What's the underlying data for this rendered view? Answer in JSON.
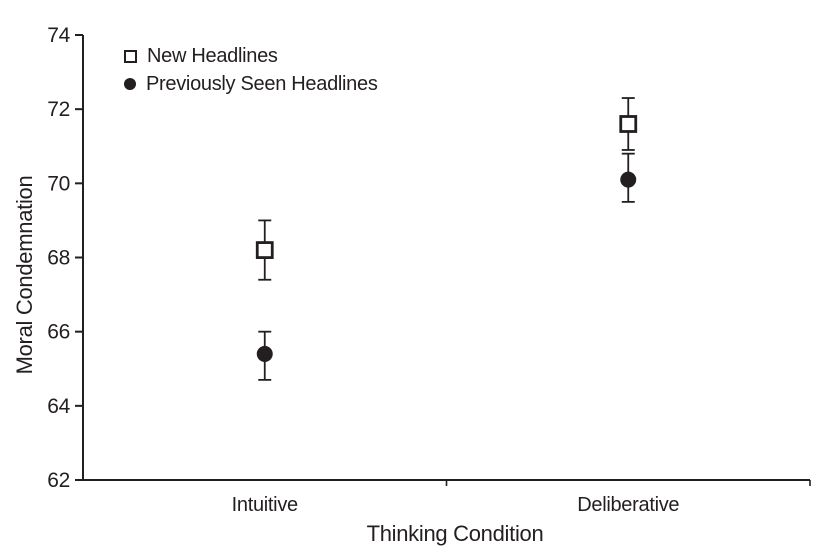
{
  "figure": {
    "background": "#ffffff",
    "ink_color": "#231f20"
  },
  "chart_data": {
    "type": "scatter",
    "title": "",
    "xlabel": "Thinking Condition",
    "ylabel": "Moral Condemnation",
    "categories": [
      "Intuitive",
      "Deliberative"
    ],
    "series": [
      {
        "name": "New Headlines",
        "marker": "open-square",
        "values": [
          68.2,
          71.6
        ],
        "error_low": [
          67.4,
          70.9
        ],
        "error_high": [
          69.0,
          72.3
        ]
      },
      {
        "name": "Previously Seen Headlines",
        "marker": "filled-circle",
        "values": [
          65.4,
          70.1
        ],
        "error_low": [
          64.7,
          69.5
        ],
        "error_high": [
          66.0,
          70.8
        ]
      }
    ],
    "ylim": [
      62,
      74
    ],
    "yticks": [
      62,
      64,
      66,
      68,
      70,
      72,
      74
    ],
    "legend_position": "top-left",
    "grid": false
  }
}
